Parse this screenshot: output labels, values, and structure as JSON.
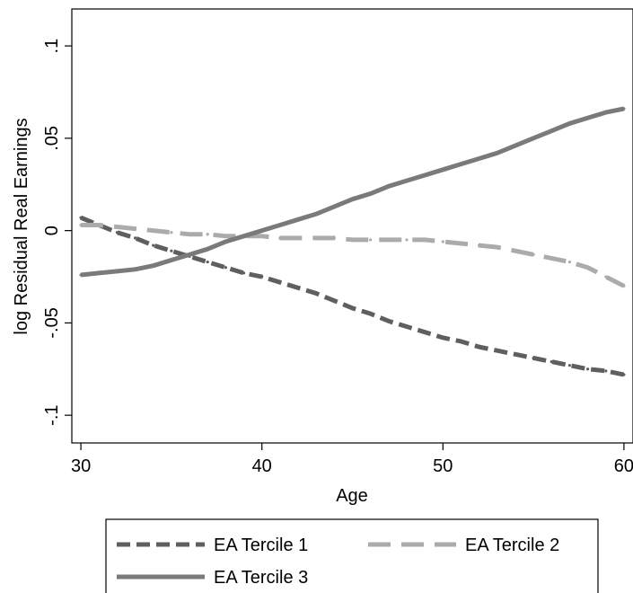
{
  "chart_data": {
    "type": "line",
    "title": "",
    "xlabel": "Age",
    "ylabel": "log Residual Real Earnings",
    "xlim": [
      29.5,
      60.5
    ],
    "ylim": [
      -0.115,
      0.12
    ],
    "xticks": [
      30,
      40,
      50,
      60
    ],
    "xtick_labels": [
      "30",
      "40",
      "50",
      "60"
    ],
    "yticks": [
      -0.1,
      -0.05,
      0,
      0.05,
      0.1
    ],
    "ytick_labels": [
      "-.1",
      "-.05",
      "0",
      ".05",
      ".1"
    ],
    "grid": false,
    "legend_position": "bottom",
    "x": [
      30,
      31,
      32,
      33,
      34,
      35,
      36,
      37,
      38,
      39,
      40,
      41,
      42,
      43,
      44,
      45,
      46,
      47,
      48,
      49,
      50,
      51,
      52,
      53,
      54,
      55,
      56,
      57,
      58,
      59,
      60
    ],
    "series": [
      {
        "name": "EA Tercile 1",
        "color": "#5f5f5f",
        "dash": "short",
        "values": [
          0.007,
          0.003,
          -0.001,
          -0.004,
          -0.008,
          -0.011,
          -0.014,
          -0.017,
          -0.02,
          -0.023,
          -0.025,
          -0.028,
          -0.031,
          -0.034,
          -0.038,
          -0.042,
          -0.045,
          -0.049,
          -0.052,
          -0.055,
          -0.058,
          -0.06,
          -0.063,
          -0.065,
          -0.067,
          -0.069,
          -0.071,
          -0.073,
          -0.075,
          -0.076,
          -0.078
        ]
      },
      {
        "name": "EA Tercile 2",
        "color": "#ababab",
        "dash": "long",
        "values": [
          0.003,
          0.003,
          0.002,
          0.001,
          0.0,
          -0.001,
          -0.002,
          -0.002,
          -0.003,
          -0.003,
          -0.003,
          -0.004,
          -0.004,
          -0.004,
          -0.004,
          -0.005,
          -0.005,
          -0.005,
          -0.005,
          -0.005,
          -0.006,
          -0.007,
          -0.008,
          -0.009,
          -0.011,
          -0.013,
          -0.015,
          -0.017,
          -0.02,
          -0.025,
          -0.03
        ]
      },
      {
        "name": "EA Tercile 3",
        "color": "#7a7a7a",
        "dash": "solid",
        "values": [
          -0.024,
          -0.023,
          -0.022,
          -0.021,
          -0.019,
          -0.016,
          -0.013,
          -0.01,
          -0.006,
          -0.003,
          0.0,
          0.003,
          0.006,
          0.009,
          0.013,
          0.017,
          0.02,
          0.024,
          0.027,
          0.03,
          0.033,
          0.036,
          0.039,
          0.042,
          0.046,
          0.05,
          0.054,
          0.058,
          0.061,
          0.064,
          0.066
        ]
      }
    ]
  }
}
